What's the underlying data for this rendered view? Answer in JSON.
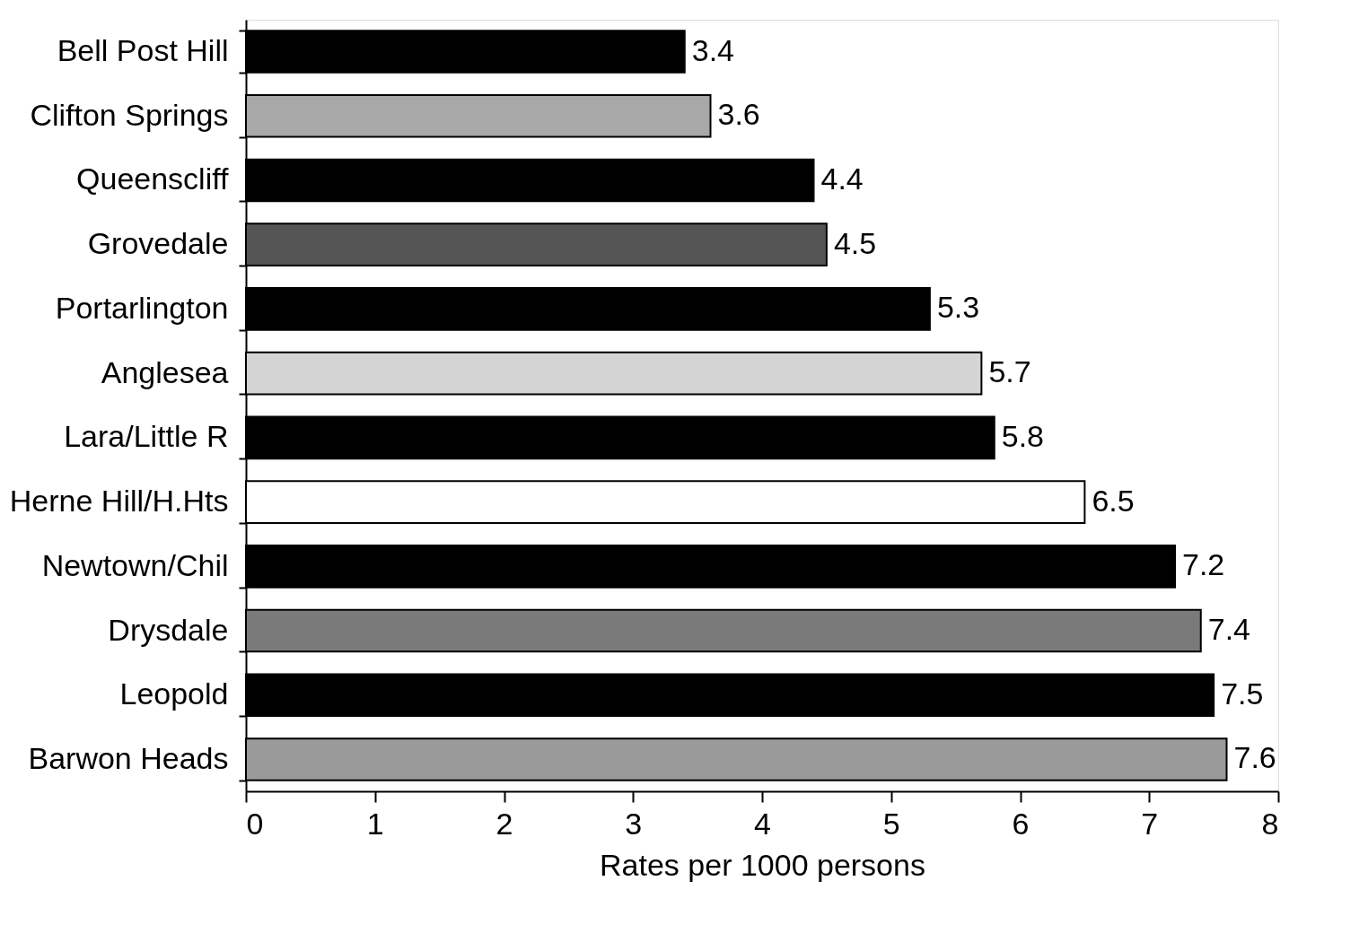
{
  "chart_data": {
    "type": "bar",
    "orientation": "horizontal",
    "xlabel": "Rates per 1000 persons",
    "categories": [
      "Bell Post Hill",
      "Clifton Springs",
      "Queenscliff",
      "Grovedale",
      "Portarlington",
      "Anglesea",
      "Lara/Little R",
      "Herne Hill/H.Hts",
      "Newtown/Chil",
      "Drysdale",
      "Leopold",
      "Barwon Heads"
    ],
    "values": [
      3.4,
      3.6,
      4.4,
      4.5,
      5.3,
      5.7,
      5.8,
      6.5,
      7.2,
      7.4,
      7.5,
      7.6
    ],
    "colors": [
      "#000000",
      "#a8a8a8",
      "#000000",
      "#555555",
      "#000000",
      "#d4d4d4",
      "#000000",
      "#ffffff",
      "#000000",
      "#7a7a7a",
      "#000000",
      "#9a9a9a"
    ],
    "xlim": [
      0,
      8
    ],
    "xticks": [
      0,
      1,
      2,
      3,
      4,
      5,
      6,
      7,
      8
    ],
    "data_labels": true,
    "grid": false
  }
}
